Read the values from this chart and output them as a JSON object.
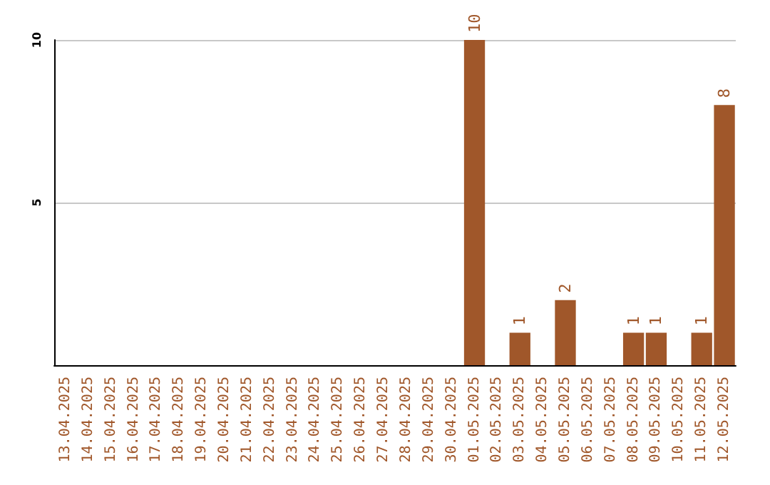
{
  "chart_data": {
    "type": "bar",
    "categories": [
      "13.04.2025",
      "14.04.2025",
      "15.04.2025",
      "16.04.2025",
      "17.04.2025",
      "18.04.2025",
      "19.04.2025",
      "20.04.2025",
      "21.04.2025",
      "22.04.2025",
      "23.04.2025",
      "24.04.2025",
      "25.04.2025",
      "26.04.2025",
      "27.04.2025",
      "28.04.2025",
      "29.04.2025",
      "30.04.2025",
      "01.05.2025",
      "02.05.2025",
      "03.05.2025",
      "04.05.2025",
      "05.05.2025",
      "06.05.2025",
      "07.05.2025",
      "08.05.2025",
      "09.05.2025",
      "10.05.2025",
      "11.05.2025",
      "12.05.2025"
    ],
    "values": [
      0,
      0,
      0,
      0,
      0,
      0,
      0,
      0,
      0,
      0,
      0,
      0,
      0,
      0,
      0,
      0,
      0,
      0,
      10,
      0,
      1,
      0,
      2,
      0,
      0,
      1,
      1,
      0,
      1,
      8
    ],
    "value_labels": [
      null,
      null,
      null,
      null,
      null,
      null,
      null,
      null,
      null,
      null,
      null,
      null,
      null,
      null,
      null,
      null,
      null,
      null,
      "10",
      null,
      "1",
      null,
      "2",
      null,
      null,
      "1",
      "1",
      null,
      "1",
      "8"
    ],
    "color": "#a0572a",
    "ylim": [
      0,
      10
    ],
    "yticks": [
      {
        "value": 0,
        "label": null
      },
      5,
      10
    ],
    "grid": "y"
  }
}
